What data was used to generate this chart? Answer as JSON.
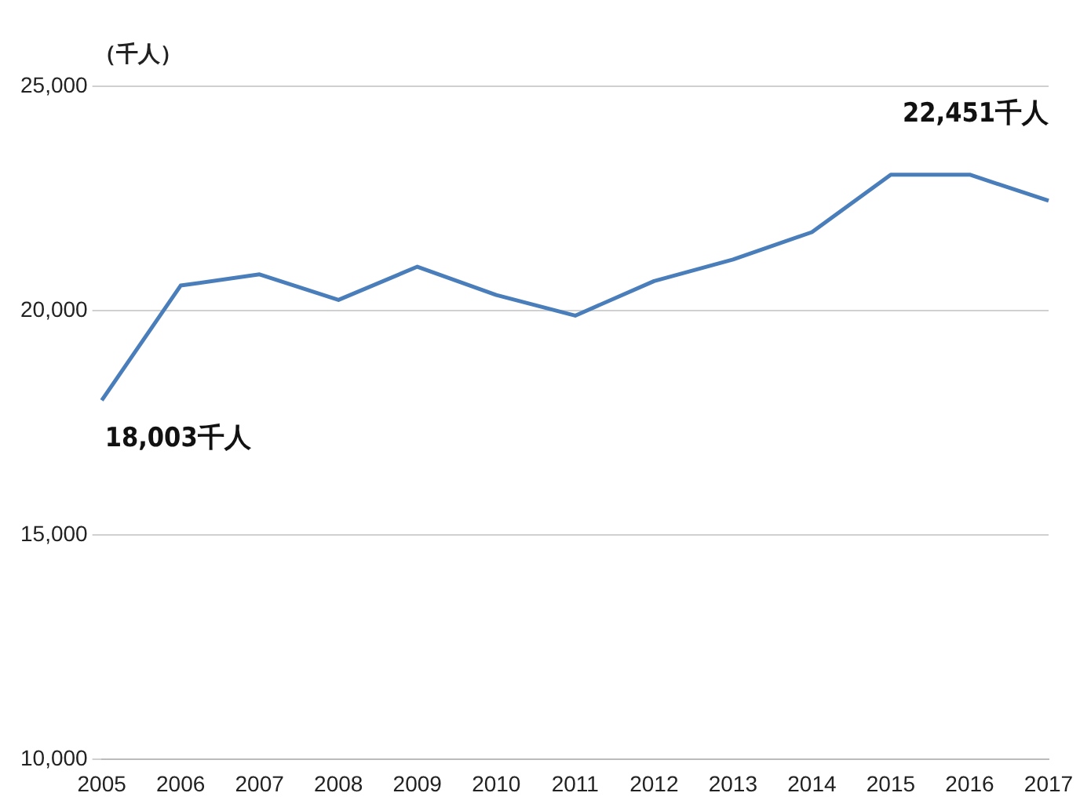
{
  "chart_data": {
    "type": "line",
    "ylabel": "（千人）",
    "categories": [
      "2005",
      "2006",
      "2007",
      "2008",
      "2009",
      "2010",
      "2011",
      "2012",
      "2013",
      "2014",
      "2015",
      "2016",
      "2017"
    ],
    "series": [
      {
        "color": "#4a7ebb",
        "values": [
          18003,
          20560,
          20810,
          20240,
          20980,
          20350,
          19890,
          20660,
          21140,
          21750,
          23030,
          23030,
          22451
        ]
      }
    ],
    "ylim": [
      10000,
      25000
    ],
    "yticks": [
      {
        "value": 10000,
        "label": "10,000"
      },
      {
        "value": 15000,
        "label": "15,000"
      },
      {
        "value": 20000,
        "label": "20,000"
      },
      {
        "value": 25000,
        "label": "25,000"
      }
    ],
    "grid": "y",
    "legend": false,
    "marker": "none",
    "line_style": "solid",
    "annotations": [
      {
        "text": "18,003千人",
        "x": "2005",
        "y": 18003
      },
      {
        "text": "22,451千人",
        "x": "2017",
        "y": 22451
      }
    ]
  }
}
